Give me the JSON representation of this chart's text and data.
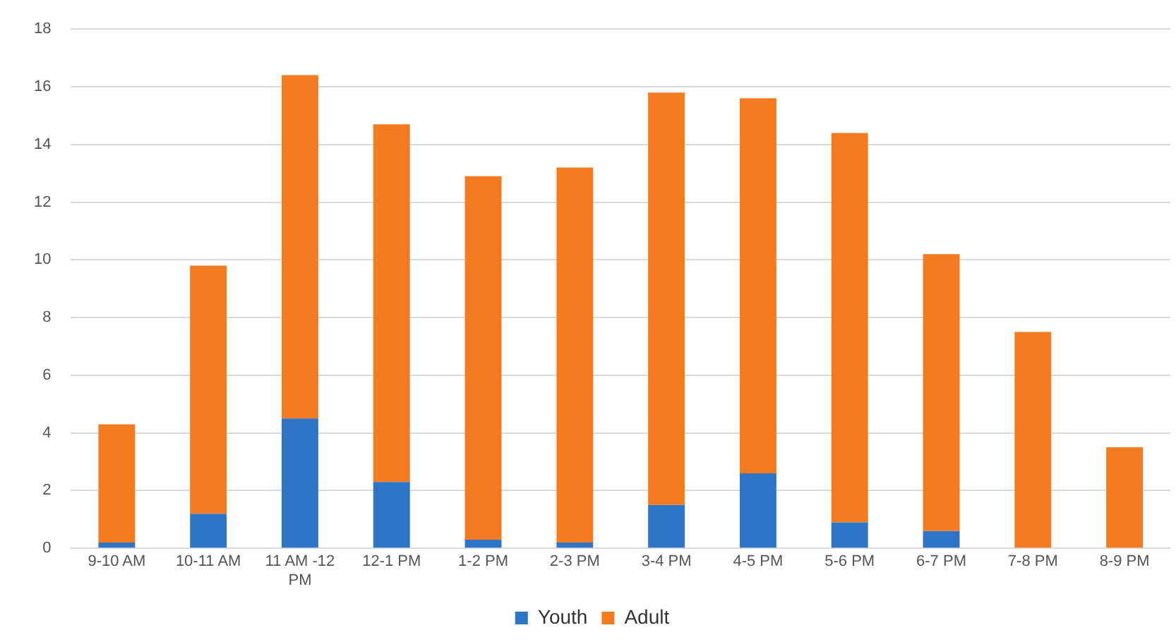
{
  "chart_data": {
    "type": "bar",
    "stacked": true,
    "categories": [
      "9-10 AM",
      "10-11 AM",
      "11 AM -12 PM",
      "12-1 PM",
      "1-2 PM",
      "2-3 PM",
      "3-4 PM",
      "4-5 PM",
      "5-6 PM",
      "6-7 PM",
      "7-8 PM",
      "8-9 PM"
    ],
    "series": [
      {
        "name": "Youth",
        "color": "#2e75c8",
        "values": [
          0.2,
          1.2,
          4.5,
          2.3,
          0.3,
          0.2,
          1.5,
          2.6,
          0.9,
          0.6,
          0,
          0
        ]
      },
      {
        "name": "Adult",
        "color": "#f47b20",
        "values": [
          4.1,
          8.6,
          11.9,
          12.4,
          12.6,
          13.0,
          14.3,
          13.0,
          13.5,
          9.6,
          7.5,
          3.5
        ]
      }
    ],
    "ylim": [
      0,
      18
    ],
    "yticks": [
      0,
      2,
      4,
      6,
      8,
      10,
      12,
      14,
      16,
      18
    ],
    "grid": "y",
    "legend": "bottom"
  }
}
